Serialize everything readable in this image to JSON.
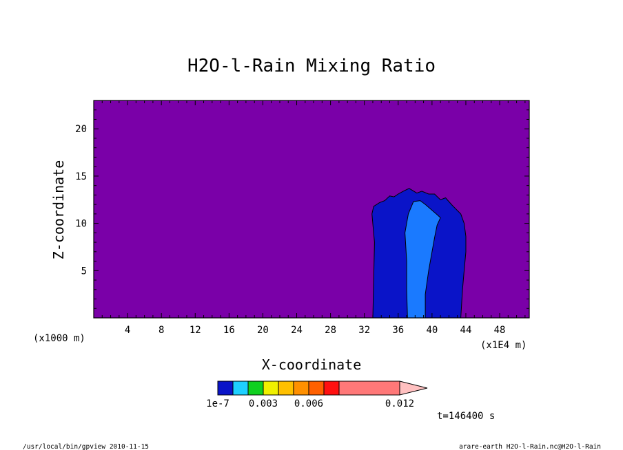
{
  "chart_data": {
    "type": "heatmap",
    "title": "H2O-l-Rain Mixing Ratio",
    "xlabel": "X-coordinate",
    "ylabel": "Z-coordinate",
    "x_unit": "(x1E4 m)",
    "y_unit": "(x1000 m)",
    "xlim": [
      0,
      51.5
    ],
    "ylim": [
      0,
      23
    ],
    "x_ticks": [
      4,
      8,
      12,
      16,
      20,
      24,
      28,
      32,
      36,
      40,
      44,
      48
    ],
    "y_ticks": [
      5,
      10,
      15,
      20
    ],
    "background_color": "#7a00a8",
    "levels": [
      {
        "range": "below 1e-7",
        "color": "#7a00a8"
      },
      {
        "range": "1e-7 – 0.0015",
        "color": "#0a14c8"
      },
      {
        "range": "0.0015 – 0.003",
        "color": "#1a7aff"
      }
    ],
    "regions": [
      {
        "level": 1,
        "points": [
          [
            33.0,
            0
          ],
          [
            33.2,
            8
          ],
          [
            32.9,
            11
          ],
          [
            33.1,
            11.8
          ],
          [
            33.8,
            12.2
          ],
          [
            34.4,
            12.4
          ],
          [
            35.0,
            12.9
          ],
          [
            35.5,
            12.8
          ],
          [
            36.0,
            13.1
          ],
          [
            36.6,
            13.4
          ],
          [
            37.3,
            13.7
          ],
          [
            38.2,
            13.2
          ],
          [
            38.8,
            13.4
          ],
          [
            39.6,
            13.1
          ],
          [
            40.3,
            13.1
          ],
          [
            41.0,
            12.5
          ],
          [
            41.6,
            12.7
          ],
          [
            42.4,
            11.9
          ],
          [
            43.4,
            11.0
          ],
          [
            43.8,
            10.0
          ],
          [
            44.0,
            8.6
          ],
          [
            44.0,
            7.0
          ],
          [
            43.8,
            5.0
          ],
          [
            43.6,
            3.0
          ],
          [
            43.4,
            0
          ]
        ]
      },
      {
        "level": 2,
        "points": [
          [
            37.1,
            0
          ],
          [
            37.0,
            3.0
          ],
          [
            37.0,
            6.0
          ],
          [
            36.8,
            9.0
          ],
          [
            37.2,
            11.0
          ],
          [
            37.8,
            12.3
          ],
          [
            38.6,
            12.4
          ],
          [
            39.2,
            12.0
          ],
          [
            40.5,
            11.0
          ],
          [
            41.0,
            10.6
          ],
          [
            40.6,
            9.8
          ],
          [
            40.3,
            8.5
          ],
          [
            40.0,
            7.0
          ],
          [
            39.6,
            5.0
          ],
          [
            39.2,
            2.5
          ],
          [
            39.2,
            0
          ]
        ]
      }
    ],
    "colorbar": {
      "colors": [
        "#0a14c8",
        "#1ed0ff",
        "#10d020",
        "#f0f000",
        "#ffc000",
        "#ff9000",
        "#ff6000",
        "#ff1010",
        "#ff7878"
      ],
      "extend_color": "#ffc0c0",
      "tick_labels": [
        "1e-7",
        "0.003",
        "0.006",
        "0.012"
      ]
    },
    "time_label": "t=146400 s"
  },
  "footer": {
    "left": "/usr/local/bin/gpview  2010-11-15",
    "right": "arare-earth_H2O-l-Rain.nc@H2O-l-Rain"
  }
}
